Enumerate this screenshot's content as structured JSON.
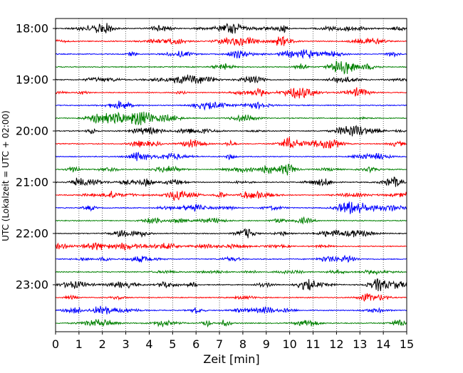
{
  "chart_data": {
    "type": "line",
    "chart_kind": "helicorder",
    "title": "",
    "xlabel": "Zeit  [min]",
    "ylabel": "UTC (Lokalzeit = UTC + 02:00)",
    "xlim": [
      0,
      15
    ],
    "x_ticks": [
      "0",
      "1",
      "2",
      "3",
      "4",
      "5",
      "6",
      "7",
      "8",
      "9",
      "10",
      "11",
      "12",
      "13",
      "14",
      "15"
    ],
    "y_tick_labels": [
      "18:00",
      "19:00",
      "20:00",
      "21:00",
      "22:00",
      "23:00"
    ],
    "trace_minutes_per_line": 15,
    "trace_count": 24,
    "trace_start_time": "18:00",
    "trace_end_time": "23:45",
    "trace_color_cycle": [
      "#000000",
      "#ff0000",
      "#0000ff",
      "#008000"
    ],
    "grid": "vertical dotted lines at each minute"
  }
}
